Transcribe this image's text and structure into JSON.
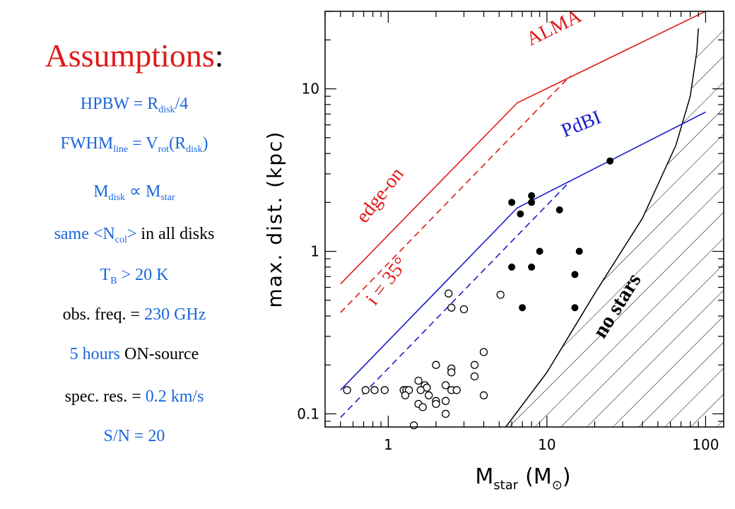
{
  "assumptions": {
    "title": "Assumptions",
    "title_colon": ":",
    "l1": {
      "a": "HPBW = R",
      "a_sub": "disk",
      "b": "/4"
    },
    "l2": {
      "a": "FWHM",
      "a_sub": "line",
      "b": " = V",
      "b_sub": "rot",
      "c": "(R",
      "c_sub": "disk",
      "d": ")"
    },
    "l3": {
      "a": "M",
      "a_sub": "disk",
      "b": " ∝ M",
      "b_sub": "star"
    },
    "l4": {
      "a": "same <N",
      "a_sub": "col",
      "b": ">",
      "c": " in all disks"
    },
    "l5": {
      "a": "T",
      "a_sub": "B",
      "b": " > 20 K"
    },
    "l6": {
      "a": "obs. freq. = ",
      "b": "230 GHz"
    },
    "l7": {
      "a": "5 hours",
      "b": " ON-source"
    },
    "l8": {
      "a": "spec. res. = ",
      "b": "0.2 km/s"
    },
    "l9": {
      "a": "S/N = 20"
    }
  },
  "colors": {
    "red": "#e01818",
    "blue": "#1a1acc",
    "text_blue": "#1a66dd",
    "black": "#000000"
  },
  "chart_data": {
    "type": "scatter",
    "xlabel": "M",
    "xlabel_sub": "star",
    "xlabel_unit": "(M",
    "xlabel_unit_sub": "⊙",
    "xlabel_unit_close": ")",
    "ylabel": "max. dist. (kpc)",
    "xscale": "log",
    "yscale": "log",
    "xlim": [
      0.4,
      130
    ],
    "ylim": [
      0.083,
      30
    ],
    "xticks": [
      {
        "v": 1,
        "label": "1"
      },
      {
        "v": 10,
        "label": "10"
      },
      {
        "v": 100,
        "label": "100"
      }
    ],
    "yticks": [
      {
        "v": 0.1,
        "label": "0.1"
      },
      {
        "v": 1,
        "label": "1"
      },
      {
        "v": 10,
        "label": "10"
      }
    ],
    "lines": [
      {
        "name": "ALMA",
        "color": "#e01818",
        "dash": false,
        "points": [
          [
            0.5,
            0.63
          ],
          [
            6.5,
            8.2
          ],
          [
            100,
            30
          ]
        ]
      },
      {
        "name": "ALMA i=35",
        "color": "#e01818",
        "dash": true,
        "points": [
          [
            0.5,
            0.42
          ],
          [
            14,
            12
          ]
        ]
      },
      {
        "name": "PdBI",
        "color": "#1a1acc",
        "dash": false,
        "points": [
          [
            0.5,
            0.14
          ],
          [
            6.5,
            1.85
          ],
          [
            100,
            7.2
          ]
        ]
      },
      {
        "name": "PdBI i=35",
        "color": "#1a1acc",
        "dash": true,
        "points": [
          [
            0.5,
            0.095
          ],
          [
            14,
            2.7
          ]
        ]
      }
    ],
    "labels": [
      {
        "text": "ALMA",
        "color": "#e01818",
        "x": 11.5,
        "y": 22,
        "rot": -26
      },
      {
        "text": "edge-on",
        "color": "#e01818",
        "x": 0.95,
        "y": 2.1,
        "rot": -52
      },
      {
        "text": "i = 35°",
        "color": "#e01818",
        "x": 1.05,
        "y": 0.62,
        "rot": -52
      },
      {
        "text": "PdBI",
        "color": "#1a1acc",
        "x": 17,
        "y": 5.6,
        "rot": -22
      },
      {
        "text": "no stars",
        "color": "#000000",
        "x": 30,
        "y": 0.44,
        "rot": -58
      }
    ],
    "no_stars_boundary": [
      [
        5.5,
        0.083
      ],
      [
        10,
        0.18
      ],
      [
        20,
        0.55
      ],
      [
        40,
        1.6
      ],
      [
        65,
        4.5
      ],
      [
        80,
        9
      ],
      [
        88,
        17
      ],
      [
        90,
        23.5
      ]
    ],
    "filled_points": [
      {
        "x": 6,
        "y": 2.0
      },
      {
        "x": 6.8,
        "y": 1.7
      },
      {
        "x": 8,
        "y": 2.2
      },
      {
        "x": 8,
        "y": 2.0
      },
      {
        "x": 12,
        "y": 1.8
      },
      {
        "x": 25,
        "y": 3.6
      },
      {
        "x": 9,
        "y": 1.0
      },
      {
        "x": 16,
        "y": 1.0
      },
      {
        "x": 6,
        "y": 0.8
      },
      {
        "x": 8,
        "y": 0.8
      },
      {
        "x": 15,
        "y": 0.72
      },
      {
        "x": 7,
        "y": 0.45
      },
      {
        "x": 15,
        "y": 0.45
      }
    ],
    "open_points": [
      {
        "x": 0.55,
        "y": 0.14
      },
      {
        "x": 0.72,
        "y": 0.14
      },
      {
        "x": 0.82,
        "y": 0.14
      },
      {
        "x": 0.95,
        "y": 0.14
      },
      {
        "x": 1.25,
        "y": 0.14
      },
      {
        "x": 1.3,
        "y": 0.14
      },
      {
        "x": 1.35,
        "y": 0.14
      },
      {
        "x": 1.28,
        "y": 0.13
      },
      {
        "x": 1.55,
        "y": 0.16
      },
      {
        "x": 1.7,
        "y": 0.15
      },
      {
        "x": 1.75,
        "y": 0.145
      },
      {
        "x": 1.6,
        "y": 0.14
      },
      {
        "x": 1.8,
        "y": 0.13
      },
      {
        "x": 1.55,
        "y": 0.115
      },
      {
        "x": 1.65,
        "y": 0.11
      },
      {
        "x": 2.0,
        "y": 0.12
      },
      {
        "x": 2.0,
        "y": 0.115
      },
      {
        "x": 2.0,
        "y": 0.2
      },
      {
        "x": 2.3,
        "y": 0.15
      },
      {
        "x": 2.3,
        "y": 0.12
      },
      {
        "x": 2.3,
        "y": 0.1
      },
      {
        "x": 2.5,
        "y": 0.19
      },
      {
        "x": 2.5,
        "y": 0.18
      },
      {
        "x": 2.5,
        "y": 0.14
      },
      {
        "x": 2.7,
        "y": 0.14
      },
      {
        "x": 1.45,
        "y": 0.085
      },
      {
        "x": 2.4,
        "y": 0.55
      },
      {
        "x": 2.5,
        "y": 0.45
      },
      {
        "x": 3.0,
        "y": 0.44
      },
      {
        "x": 3.5,
        "y": 0.2
      },
      {
        "x": 3.5,
        "y": 0.17
      },
      {
        "x": 4.0,
        "y": 0.24
      },
      {
        "x": 4.0,
        "y": 0.13
      },
      {
        "x": 5.1,
        "y": 0.54
      }
    ]
  }
}
